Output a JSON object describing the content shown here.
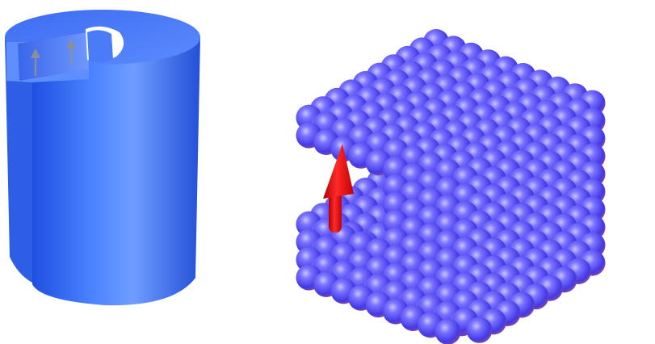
{
  "figure": {
    "panels": [
      {
        "id": "continuum-model",
        "shape": "notched-cylinder",
        "color": "#4d7cf5",
        "arrows": 2,
        "arrow_color": "#8a8f99"
      },
      {
        "id": "atomistic-model",
        "shape": "sphere-lattice-block-with-notch",
        "color": "#5a5cf0",
        "arrows": 1,
        "arrow_color": "#ee1111"
      }
    ]
  }
}
